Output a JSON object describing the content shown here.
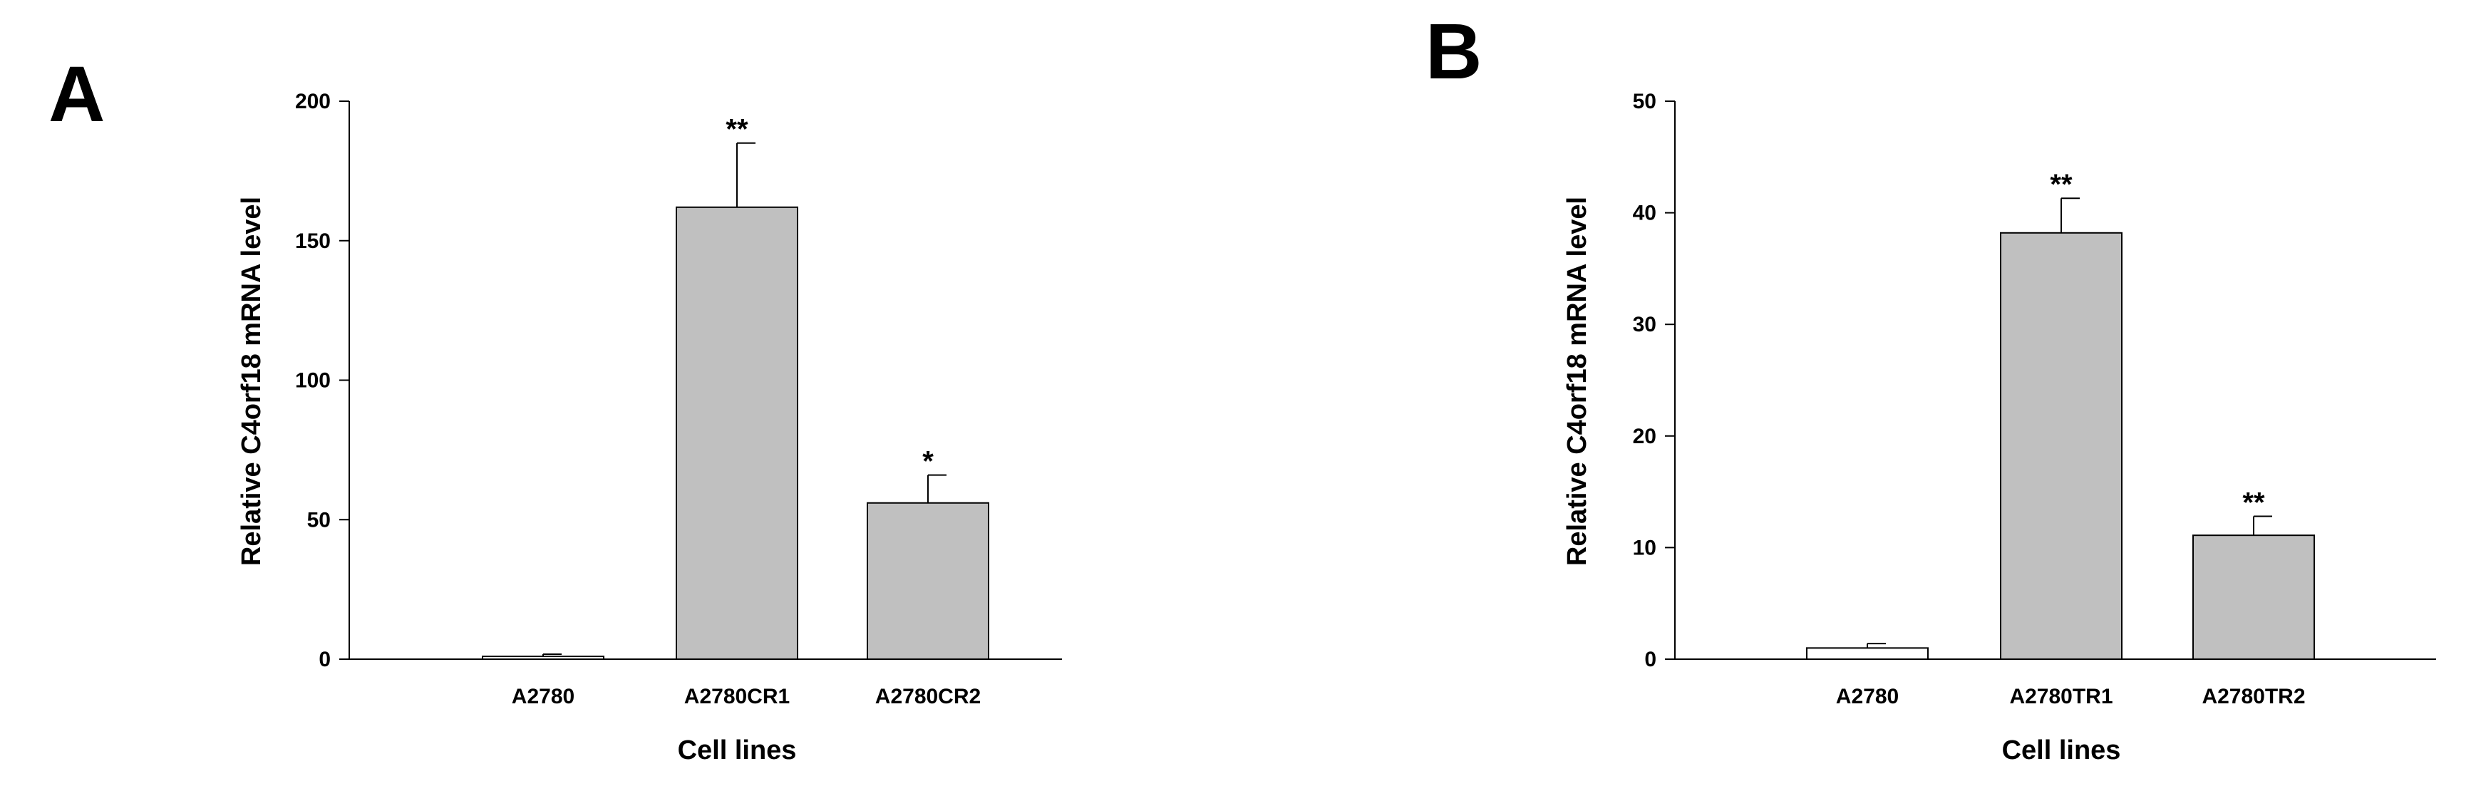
{
  "chart_data": [
    {
      "type": "bar",
      "panel_label": "A",
      "title": "",
      "xlabel": "Cell lines",
      "ylabel": "Relative C4orf18 mRNA level",
      "ylim": [
        0,
        200
      ],
      "yticks": [
        0,
        50,
        100,
        150,
        200
      ],
      "categories": [
        "A2780",
        "A2780CR1",
        "A2780CR2"
      ],
      "values": [
        1,
        162,
        56
      ],
      "errors": [
        0.8,
        23,
        10
      ],
      "significance": [
        "",
        "**",
        "*"
      ],
      "bar_colors": [
        "#ffffff",
        "#c0c0c0",
        "#c0c0c0"
      ],
      "grid": false
    },
    {
      "type": "bar",
      "panel_label": "B",
      "title": "",
      "xlabel": "Cell lines",
      "ylabel": "Relative C4orf18 mRNA level",
      "ylim": [
        0,
        50
      ],
      "yticks": [
        0,
        10,
        20,
        30,
        40,
        50
      ],
      "categories": [
        "A2780",
        "A2780TR1",
        "A2780TR2"
      ],
      "values": [
        1,
        38.2,
        11.1
      ],
      "errors": [
        0.4,
        3.1,
        1.7
      ],
      "significance": [
        "",
        "**",
        "**"
      ],
      "bar_colors": [
        "#ffffff",
        "#c0c0c0",
        "#c0c0c0"
      ],
      "grid": false
    }
  ]
}
